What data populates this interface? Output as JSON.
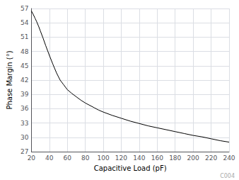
{
  "chart_data": {
    "type": "line",
    "xlabel": "Capacitive Load (pF)",
    "ylabel": "Phase Margin (°)",
    "annotations": [
      "C004"
    ],
    "x": [
      20,
      22,
      24,
      26,
      28,
      30,
      33,
      36,
      40,
      44,
      48,
      52,
      56,
      60,
      65,
      70,
      75,
      80,
      85,
      90,
      95,
      100,
      110,
      120,
      130,
      140,
      150,
      160,
      170,
      180,
      190,
      200,
      210,
      220,
      230,
      240
    ],
    "values": [
      56.5,
      55.8,
      55.0,
      54.2,
      53.3,
      52.3,
      50.8,
      49.2,
      47.2,
      45.3,
      43.5,
      42.0,
      41.0,
      40.0,
      39.2,
      38.5,
      37.8,
      37.2,
      36.7,
      36.2,
      35.7,
      35.3,
      34.6,
      34.0,
      33.4,
      32.9,
      32.4,
      32.0,
      31.6,
      31.2,
      30.8,
      30.4,
      30.1,
      29.7,
      29.3,
      29.0
    ],
    "color": "#000000",
    "xlim": [
      20,
      240
    ],
    "ylim": [
      27,
      57
    ],
    "xticks": [
      20,
      40,
      60,
      80,
      100,
      120,
      140,
      160,
      180,
      200,
      220,
      240
    ],
    "yticks": [
      27,
      30,
      33,
      36,
      39,
      42,
      45,
      48,
      51,
      54,
      57
    ],
    "grid": true
  }
}
